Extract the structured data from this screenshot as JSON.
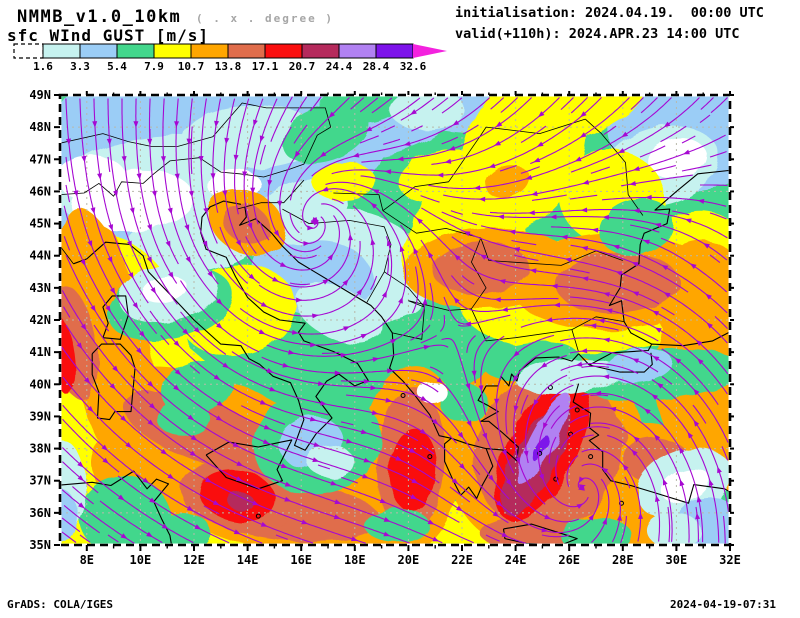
{
  "header": {
    "model_title": "NMMB_v1.0_10km",
    "resolution_note": "( . x . degree )",
    "field_label": "sfc WInd GUST [m/s]",
    "init_line": "initialisation: 2024.04.19.  00:00 UTC",
    "valid_line": "valid(+110h): 2024.APR.23 14:00 UTC"
  },
  "colorbar": {
    "tick_labels": [
      "1.6",
      "3.3",
      "5.4",
      "7.9",
      "10.7",
      "13.8",
      "17.1",
      "20.7",
      "24.4",
      "28.4",
      "32.6"
    ],
    "box_colors": [
      "#c6f2ef",
      "#9bcdf6",
      "#43d78c",
      "#ffff00",
      "#ffa600",
      "#e06d4b",
      "#fa0f0f",
      "#b52a5c",
      "#b181f2",
      "#7d13ea"
    ],
    "underflow_color": "#ffffff",
    "overflow_color": "#f322de"
  },
  "map": {
    "x_tick_labels": [
      "8E",
      "10E",
      "12E",
      "14E",
      "16E",
      "18E",
      "20E",
      "22E",
      "24E",
      "26E",
      "28E",
      "30E",
      "32E"
    ],
    "y_tick_labels": [
      "49N",
      "48N",
      "47N",
      "46N",
      "45N",
      "44N",
      "43N",
      "42N",
      "41N",
      "40N",
      "39N",
      "38N",
      "37N",
      "36N",
      "35N"
    ],
    "lon_range_deg_east": [
      8,
      32
    ],
    "lat_range_deg_north": [
      35,
      49
    ]
  },
  "footer": {
    "left": "GrADS: COLA/IGES",
    "right": "2024-04-19-07:31"
  },
  "palette": {
    "c0": "#ffffff",
    "c1": "#c6f2ef",
    "c2": "#9bcdf6",
    "c3": "#43d78c",
    "c4": "#ffff00",
    "c5": "#ffa600",
    "c6": "#e06d4b",
    "c7": "#fa0f0f",
    "c8": "#b52a5c",
    "c9": "#b181f2",
    "c10": "#7d13ea",
    "overflow": "#f322de",
    "streamline": "#a608d2",
    "coastline": "#000000",
    "gridline": "#b8b8aa"
  },
  "chart_data": {
    "type": "heatmap",
    "variable": "sfc Wind GUST",
    "units": "m/s",
    "model": "NMMB_v1.0_10km",
    "init_time": "2024.04.19. 00:00 UTC",
    "valid_time": "2024.APR.23 14:00 UTC",
    "lead_hours": 110,
    "lon_axis_deg_east": [
      8,
      10,
      12,
      14,
      16,
      18,
      20,
      22,
      24,
      26,
      28,
      30,
      32
    ],
    "lat_axis_deg_north": [
      35,
      36,
      37,
      38,
      39,
      40,
      41,
      42,
      43,
      44,
      45,
      46,
      47,
      48,
      49
    ],
    "contour_levels_m_s": [
      1.6,
      3.3,
      5.4,
      7.9,
      10.7,
      13.8,
      17.1,
      20.7,
      24.4,
      28.4,
      32.6
    ],
    "overlay": "surface wind streamlines with arrowheads",
    "notable_maxima": [
      {
        "region": "Aegean Sea",
        "approx_lon_e": 25,
        "approx_lat_n": 38,
        "gust_m_s": "24.4-28.4"
      },
      {
        "region": "south of Sicily",
        "approx_lon_e": 13.6,
        "approx_lat_n": 36.5,
        "gust_m_s": "17.1-20.7"
      },
      {
        "region": "Ionian Sea",
        "approx_lon_e": 20,
        "approx_lat_n": 37.4,
        "gust_m_s": "17.1-20.7"
      }
    ],
    "calm_minima_regions": [
      "Po valley / NW Alps",
      "SW Turkey coast",
      "NW Black Sea coast"
    ]
  }
}
